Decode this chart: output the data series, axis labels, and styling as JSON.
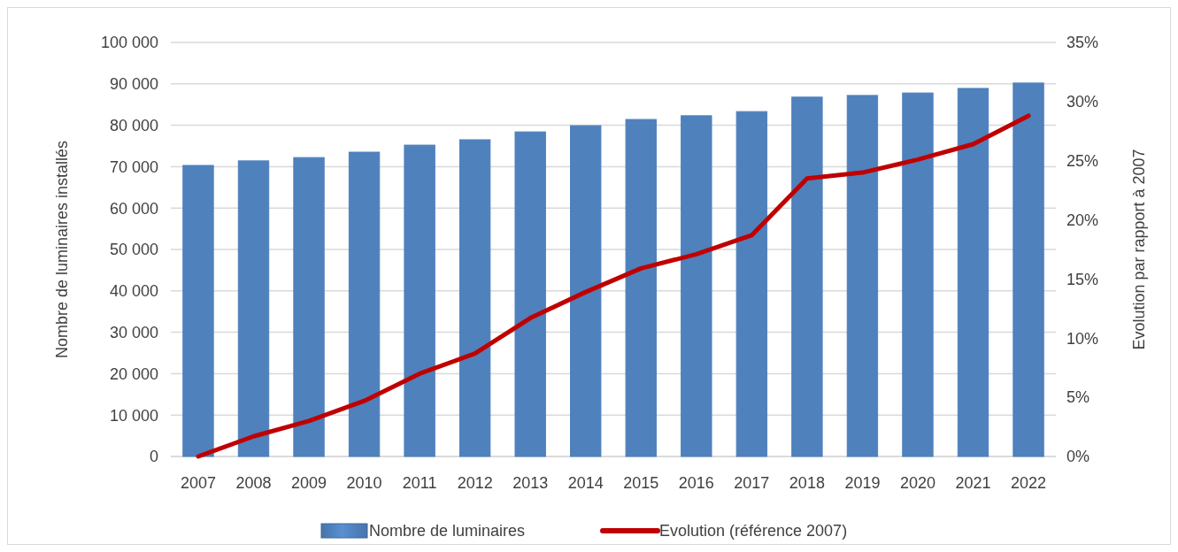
{
  "chart_data": {
    "type": "bar",
    "categories": [
      "2007",
      "2008",
      "2009",
      "2010",
      "2011",
      "2012",
      "2013",
      "2014",
      "2015",
      "2016",
      "2017",
      "2018",
      "2019",
      "2020",
      "2021",
      "2022"
    ],
    "series": [
      {
        "name": "Nombre de luminaires",
        "color": "#4f81bd",
        "values": [
          70300,
          71400,
          72200,
          73500,
          75200,
          76500,
          78400,
          79900,
          81400,
          82300,
          83300,
          86800,
          87200,
          87800,
          88900,
          90200
        ]
      },
      {
        "name": "Evolution (référence 2007)",
        "type": "line",
        "axis": "y2",
        "color": "#c00000",
        "marker": "none",
        "values": [
          0,
          1.7,
          3.0,
          4.7,
          7.0,
          8.7,
          11.7,
          13.9,
          15.9,
          17.1,
          18.7,
          23.5,
          24.0,
          25.1,
          26.4,
          28.8
        ]
      }
    ],
    "ylabel": "Nombre de luminaires installés",
    "y2label": "Evolution par rapport à 2007",
    "ylim": [
      0,
      100000
    ],
    "yticks": [
      {
        "value": 0,
        "label": "0"
      },
      {
        "value": 10000,
        "label": "10 000"
      },
      {
        "value": 20000,
        "label": "20 000"
      },
      {
        "value": 30000,
        "label": "30 000"
      },
      {
        "value": 40000,
        "label": "40 000"
      },
      {
        "value": 50000,
        "label": "50 000"
      },
      {
        "value": 60000,
        "label": "60 000"
      },
      {
        "value": 70000,
        "label": "70 000"
      },
      {
        "value": 80000,
        "label": "80 000"
      },
      {
        "value": 90000,
        "label": "90 000"
      },
      {
        "value": 100000,
        "label": "100 000"
      }
    ],
    "y2lim": [
      0,
      35
    ],
    "y2ticks": [
      {
        "value": 0,
        "label": "0%"
      },
      {
        "value": 5,
        "label": "5%"
      },
      {
        "value": 10,
        "label": "10%"
      },
      {
        "value": 15,
        "label": "15%"
      },
      {
        "value": 20,
        "label": "20%"
      },
      {
        "value": 25,
        "label": "25%"
      },
      {
        "value": 30,
        "label": "30%"
      },
      {
        "value": 35,
        "label": "35%"
      }
    ],
    "grid": "y",
    "legend": "bottom"
  }
}
